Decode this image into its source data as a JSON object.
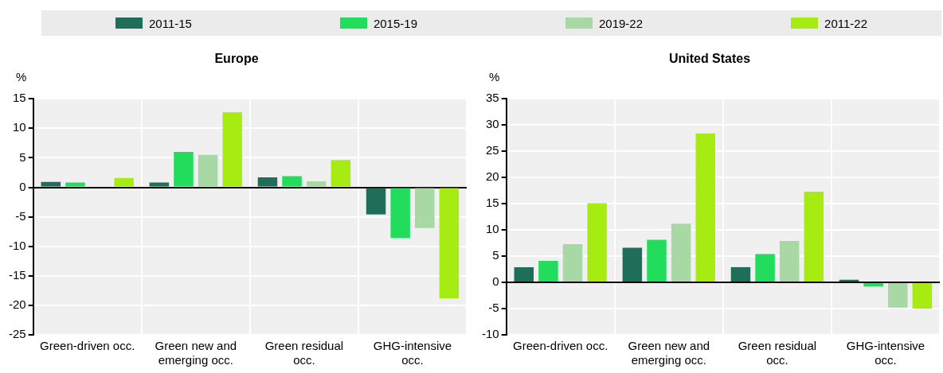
{
  "chart_data": [
    {
      "type": "bar",
      "title": "Europe",
      "ylabel": "%",
      "categories": [
        "Green-driven occ.",
        "Green new and emerging occ.",
        "Green residual occ.",
        "GHG-intensive occ."
      ],
      "series": [
        {
          "name": "2011-15",
          "color": "#1e6e5a",
          "values": [
            0.9,
            0.8,
            1.7,
            -4.6
          ]
        },
        {
          "name": "2015-19",
          "color": "#22dd5c",
          "values": [
            0.8,
            6.0,
            1.9,
            -8.6
          ]
        },
        {
          "name": "2019-22",
          "color": "#a8d8a4",
          "values": [
            0,
            5.5,
            1.0,
            -6.9
          ]
        },
        {
          "name": "2011-22",
          "color": "#a6ec12",
          "values": [
            1.6,
            12.7,
            4.6,
            -18.8
          ]
        }
      ],
      "ylim": [
        -25,
        15
      ],
      "yticks": [
        -25,
        -20,
        -15,
        -10,
        -5,
        0,
        5,
        10,
        15
      ],
      "grid": true,
      "legend": "top"
    },
    {
      "type": "bar",
      "title": "United States",
      "ylabel": "%",
      "categories": [
        "Green-driven occ.",
        "Green new and emerging occ.",
        "Green residual occ.",
        "GHG-intensive occ."
      ],
      "series": [
        {
          "color": "#1e6e5a",
          "values": [
            2.9,
            6.6,
            2.9,
            0.5
          ]
        },
        {
          "color": "#22dd5c",
          "values": [
            4.1,
            8.1,
            5.4,
            -0.8
          ]
        },
        {
          "color": "#a8d8a4",
          "values": [
            7.3,
            11.2,
            7.9,
            -4.8
          ]
        },
        {
          "color": "#a6ec12",
          "values": [
            15.1,
            28.4,
            17.3,
            -5.0
          ]
        }
      ],
      "ylim": [
        -10,
        35
      ],
      "yticks": [
        -10,
        -5,
        0,
        5,
        10,
        15,
        20,
        25,
        30,
        35
      ],
      "grid": true
    }
  ]
}
